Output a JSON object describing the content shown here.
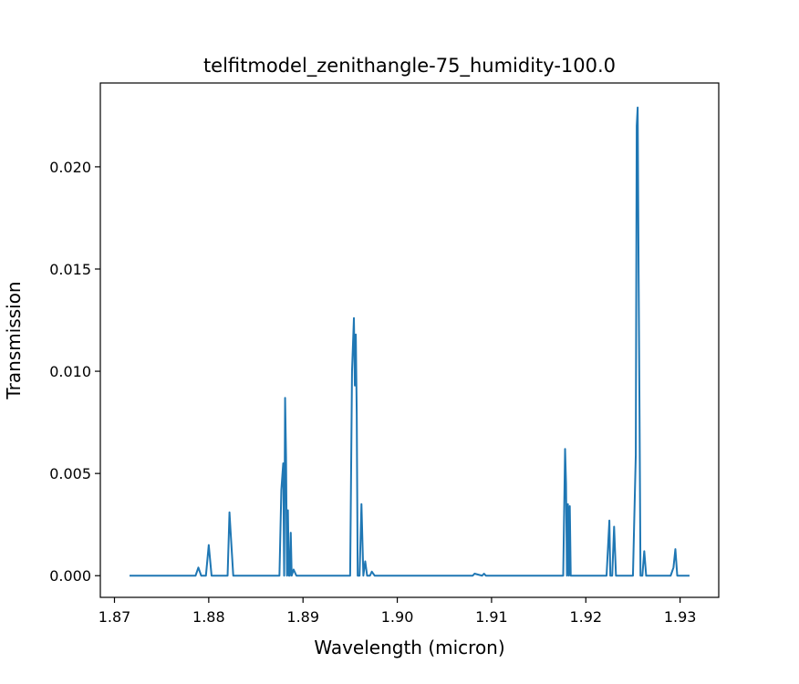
{
  "chart_data": {
    "type": "line",
    "title": "telfitmodel_zenithangle-75_humidity-100.0",
    "xlabel": "Wavelength (micron)",
    "ylabel": "Transmission",
    "xlim": [
      1.8685,
      1.9341
    ],
    "ylim": [
      -0.00106,
      0.0241
    ],
    "xticks": [
      1.87,
      1.88,
      1.89,
      1.9,
      1.91,
      1.92,
      1.93
    ],
    "xtick_labels": [
      "1.87",
      "1.88",
      "1.89",
      "1.90",
      "1.91",
      "1.92",
      "1.93"
    ],
    "yticks": [
      0.0,
      0.005,
      0.01,
      0.015,
      0.02
    ],
    "ytick_labels": [
      "0.000",
      "0.005",
      "0.010",
      "0.015",
      "0.020"
    ],
    "grid": false,
    "line_color": "#1f77b4",
    "series": [
      {
        "x": [
          1.8716,
          1.8786,
          1.8789,
          1.8792,
          1.8797,
          1.88,
          1.8803,
          1.882,
          1.8822,
          1.8823,
          1.8826,
          1.886,
          1.8862,
          1.8875,
          1.8877,
          1.8879,
          1.888,
          1.8881,
          1.8882,
          1.8883,
          1.8884,
          1.8885,
          1.8886,
          1.8887,
          1.8888,
          1.889,
          1.8893,
          1.8895,
          1.895,
          1.8952,
          1.8954,
          1.8955,
          1.8956,
          1.8957,
          1.8958,
          1.896,
          1.8962,
          1.8964,
          1.8966,
          1.8968,
          1.8971,
          1.8973,
          1.8976,
          1.908,
          1.9082,
          1.909,
          1.9092,
          1.9094,
          1.9172,
          1.9176,
          1.9178,
          1.9179,
          1.918,
          1.9181,
          1.9182,
          1.9183,
          1.9184,
          1.9186,
          1.919,
          1.9222,
          1.9225,
          1.9226,
          1.9228,
          1.923,
          1.9232,
          1.9233,
          1.9235,
          1.9238,
          1.925,
          1.9253,
          1.9254,
          1.9255,
          1.9256,
          1.9257,
          1.9258,
          1.926,
          1.9262,
          1.9264,
          1.9266,
          1.9268,
          1.929,
          1.9293,
          1.9295,
          1.9297,
          1.9299,
          1.931
        ],
        "y": [
          0.0,
          0.0,
          0.0004,
          0.0,
          0.0,
          0.0015,
          0.0,
          0.0,
          0.0031,
          0.0023,
          0.0,
          0.0,
          0.0,
          0.0,
          0.0042,
          0.0055,
          0.0,
          0.0087,
          0.0058,
          0.0,
          0.0032,
          0.0,
          0.0,
          0.0021,
          0.0,
          0.0003,
          0.0,
          0.0,
          0.0,
          0.01,
          0.0126,
          0.0093,
          0.0118,
          0.0079,
          0.0,
          0.0,
          0.0035,
          0.0,
          0.0007,
          0.0,
          0.0,
          0.0002,
          0.0,
          0.0,
          0.0001,
          0.0,
          0.0001,
          0.0,
          0.0,
          0.0,
          0.0062,
          0.0045,
          0.0,
          0.0035,
          0.0,
          0.0034,
          0.0,
          0.0,
          0.0,
          0.0,
          0.0027,
          0.0,
          0.0,
          0.0024,
          0.0,
          0.0,
          0.0,
          0.0,
          0.0,
          0.0059,
          0.022,
          0.0229,
          0.0148,
          0.0078,
          0.0,
          0.0,
          0.0012,
          0.0,
          0.0,
          0.0,
          0.0,
          0.0004,
          0.0013,
          0.0,
          0.0,
          0.0
        ]
      }
    ]
  }
}
